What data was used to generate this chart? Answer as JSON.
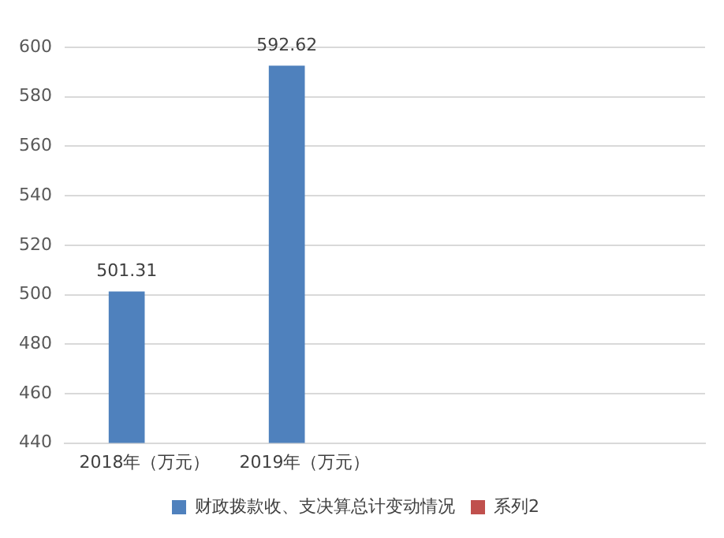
{
  "chart_data": {
    "type": "bar",
    "categories": [
      "2018年（万元）",
      "2019年（万元）",
      null,
      null
    ],
    "series": [
      {
        "name": "财政拨款收、支决算总计变动情况",
        "color": "#4f81bd",
        "values": [
          501.31,
          592.62,
          null,
          null
        ]
      },
      {
        "name": "系列2",
        "color": "#c0504d",
        "values": [
          null,
          null,
          null,
          null
        ]
      }
    ],
    "ylim": [
      440,
      600
    ],
    "yticks": [
      440,
      460,
      480,
      500,
      520,
      540,
      560,
      580,
      600
    ],
    "grid": "y",
    "legend": "bottom",
    "data_labels": true
  }
}
